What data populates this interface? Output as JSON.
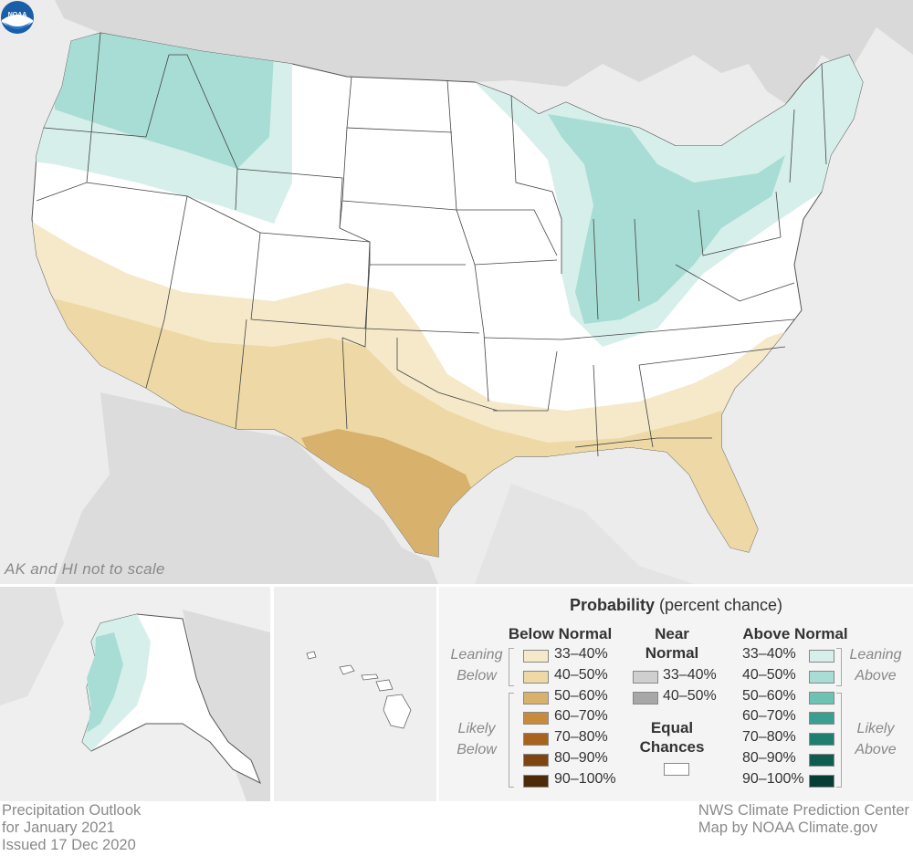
{
  "map": {
    "scale_note": "AK and HI not to scale",
    "logo_icon": "noaa-logo-icon"
  },
  "legend": {
    "title_bold": "Probability",
    "title_rest": "(percent chance)",
    "below": {
      "heading": "Below Normal",
      "leaning_label_1": "Leaning",
      "leaning_label_2": "Below",
      "likely_label_1": "Likely",
      "likely_label_2": "Below",
      "rows": [
        {
          "label": "33–40%",
          "color": "#f5e9c9"
        },
        {
          "label": "40–50%",
          "color": "#edd8a6"
        },
        {
          "label": "50–60%",
          "color": "#d8b26d"
        },
        {
          "label": "60–70%",
          "color": "#c88a3d"
        },
        {
          "label": "70–80%",
          "color": "#a86320"
        },
        {
          "label": "80–90%",
          "color": "#7e4510"
        },
        {
          "label": "90–100%",
          "color": "#4f2a08"
        }
      ]
    },
    "near": {
      "heading_1": "Near",
      "heading_2": "Normal",
      "rows": [
        {
          "label": "33–40%",
          "color": "#cfcfcf"
        },
        {
          "label": "40–50%",
          "color": "#a7a7a7"
        }
      ],
      "equal_1": "Equal",
      "equal_2": "Chances",
      "equal_color": "#ffffff"
    },
    "above": {
      "heading": "Above Normal",
      "leaning_label_1": "Leaning",
      "leaning_label_2": "Above",
      "likely_label_1": "Likely",
      "likely_label_2": "Above",
      "rows": [
        {
          "label": "33–40%",
          "color": "#d6efea"
        },
        {
          "label": "40–50%",
          "color": "#a7ddd4"
        },
        {
          "label": "50–60%",
          "color": "#6cc3b4"
        },
        {
          "label": "60–70%",
          "color": "#3a9f90"
        },
        {
          "label": "70–80%",
          "color": "#1f7e70"
        },
        {
          "label": "80–90%",
          "color": "#0f5c50"
        },
        {
          "label": "90–100%",
          "color": "#083d35"
        }
      ]
    }
  },
  "footer": {
    "left_1": "Precipitation Outlook",
    "left_2": "for January 2021",
    "left_3": "Issued 17 Dec 2020",
    "right_1": "NWS Climate Prediction Center",
    "right_2": "Map by NOAA Climate.gov"
  }
}
